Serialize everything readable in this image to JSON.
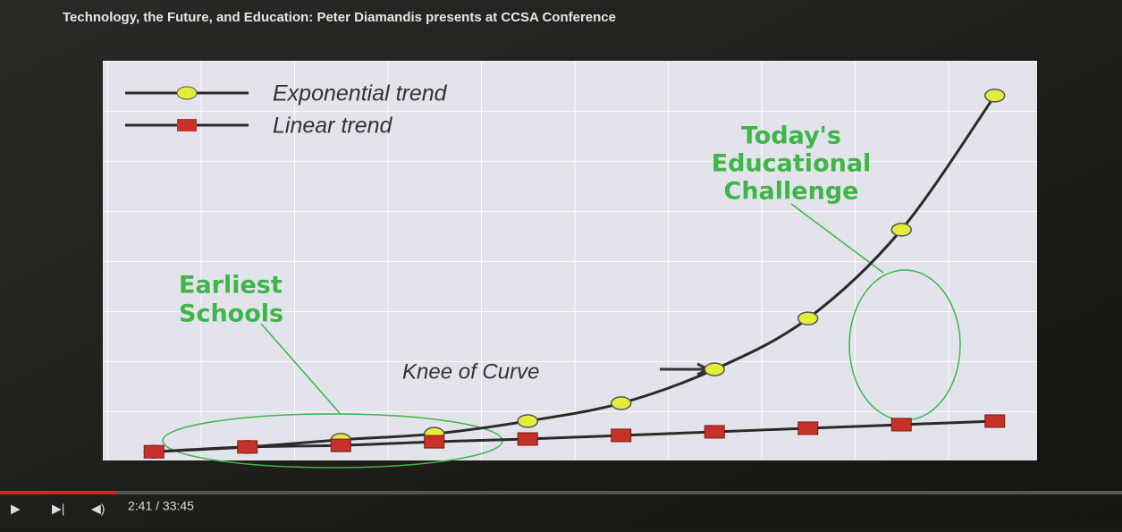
{
  "video": {
    "title": "Technology, the Future, and Education: Peter Diamandis presents at CCSA Conference",
    "time": "2:41 / 33:45"
  },
  "chart_data": {
    "type": "line",
    "categories": [
      null,
      null,
      null,
      null,
      null,
      null,
      null,
      null,
      null,
      null
    ],
    "series": [
      {
        "name": "Exponential trend",
        "color": "#2a2a2a",
        "marker_color": "#e4ec3c",
        "values": [
          2.2,
          3.4,
          5.2,
          6.7,
          9.9,
          14.4,
          22.9,
          35.7,
          58.0,
          91.7
        ]
      },
      {
        "name": "Linear trend",
        "color": "#2a2a2a",
        "marker_color": "#c8302a",
        "values": [
          2.2,
          3.4,
          3.8,
          4.7,
          5.4,
          6.3,
          7.2,
          8.1,
          9.0,
          9.9
        ]
      }
    ],
    "ylim": [
      0,
      100
    ],
    "annotations": [
      "Earliest Schools",
      "Today's Educational Challenge",
      "Knee of Curve"
    ]
  }
}
